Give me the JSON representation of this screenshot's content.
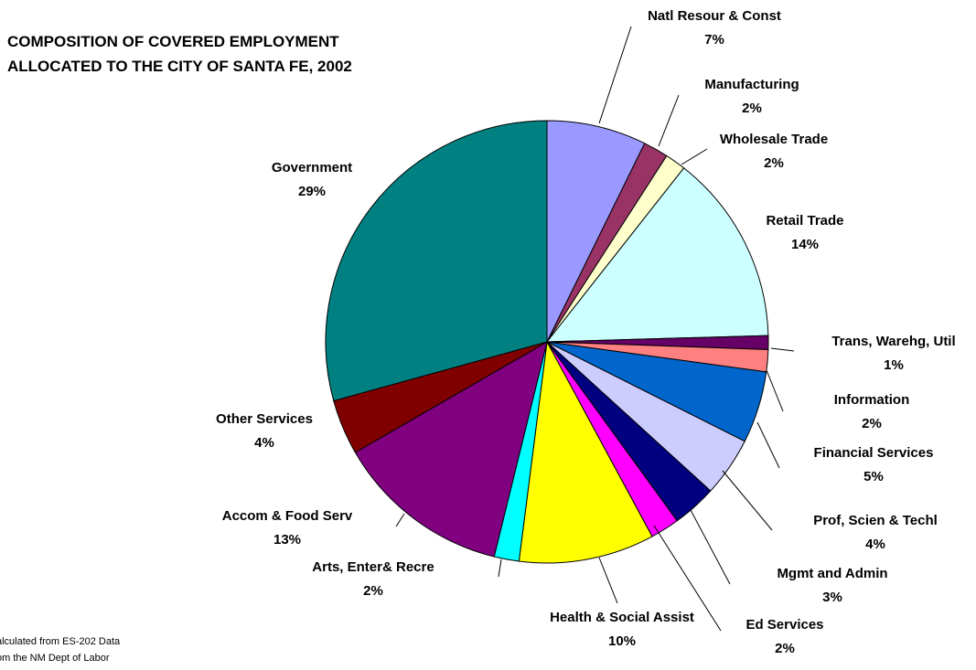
{
  "chart_data": {
    "type": "pie",
    "title_lines": [
      "COMPOSITION OF COVERED EMPLOYMENT",
      "ALLOCATED TO THE CITY OF SANTA FE, 2002"
    ],
    "source_lines": [
      "alculated from ES-202 Data",
      "om the NM Dept of Labor"
    ],
    "start_angle_deg": 0,
    "direction": "clockwise",
    "slices": [
      {
        "label": "Natl Resour & Const",
        "pct_label": "7%",
        "value": 7.2,
        "color": "#9999ff"
      },
      {
        "label": "Manufacturing",
        "pct_label": "2%",
        "value": 1.8,
        "color": "#993366"
      },
      {
        "label": "Wholesale Trade",
        "pct_label": "2%",
        "value": 1.5,
        "color": "#ffffcc"
      },
      {
        "label": "Retail Trade",
        "pct_label": "14%",
        "value": 13.8,
        "color": "#ccffff"
      },
      {
        "label": "Trans, Warehg, Util",
        "pct_label": "1%",
        "value": 1.0,
        "color": "#660066"
      },
      {
        "label": "Information",
        "pct_label": "2%",
        "value": 1.6,
        "color": "#ff8080"
      },
      {
        "label": "Financial Services",
        "pct_label": "5%",
        "value": 5.2,
        "color": "#0066cc"
      },
      {
        "label": "Prof, Scien & Techl",
        "pct_label": "4%",
        "value": 4.3,
        "color": "#ccccff"
      },
      {
        "label": "Mgmt and Admin",
        "pct_label": "3%",
        "value": 3.2,
        "color": "#000080"
      },
      {
        "label": "Ed Services",
        "pct_label": "2%",
        "value": 2.1,
        "color": "#ff00ff"
      },
      {
        "label": "Health & Social Assist",
        "pct_label": "10%",
        "value": 9.8,
        "color": "#ffff00"
      },
      {
        "label": "Arts, Enter& Recre",
        "pct_label": "2%",
        "value": 1.8,
        "color": "#00ffff"
      },
      {
        "label": "Accom & Food Serv",
        "pct_label": "13%",
        "value": 12.7,
        "color": "#800080"
      },
      {
        "label": "Other Services",
        "pct_label": "4%",
        "value": 4.0,
        "color": "#800000"
      },
      {
        "label": "Government",
        "pct_label": "29%",
        "value": 29.0,
        "color": "#008080"
      }
    ]
  }
}
